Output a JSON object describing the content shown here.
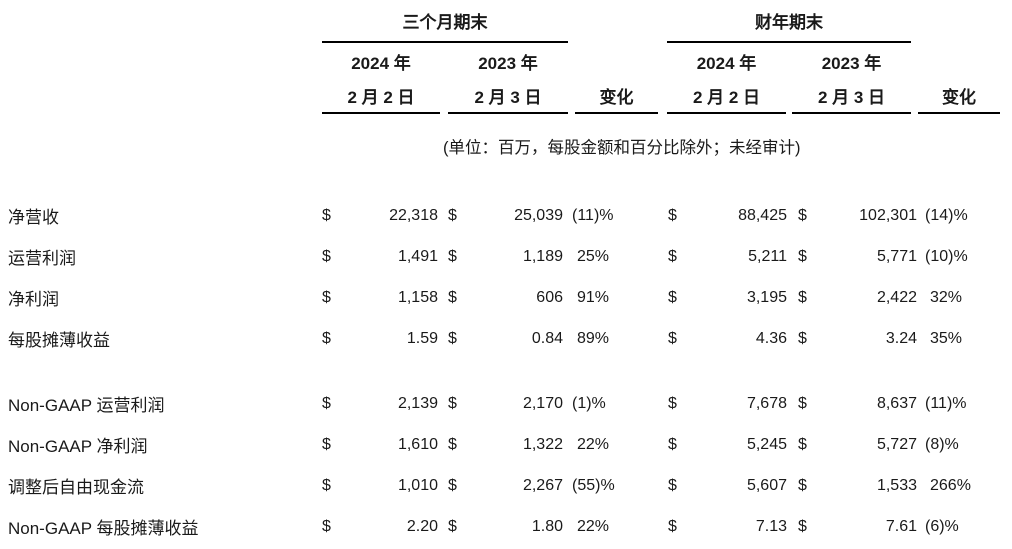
{
  "currency_symbol": "$",
  "header": {
    "quarter_group_title": "三个月期末",
    "fiscal_group_title": "财年期末",
    "q_col_2024_year": "2024 年",
    "q_col_2024_date": "2 月 2 日",
    "q_col_2023_year": "2023 年",
    "q_col_2023_date": "2 月 3 日",
    "fy_col_2024_year": "2024 年",
    "fy_col_2024_date": "2 月 2 日",
    "fy_col_2023_year": "2023 年",
    "fy_col_2023_date": "2 月 3 日",
    "q_change_label": "变化",
    "fy_change_label": "变化",
    "units_note": "(单位：百万，每股金额和百分比除外；未经审计)"
  },
  "rows": [
    {
      "label": "净营收",
      "q_2024": "22,318",
      "q_2023": "25,039",
      "q_change": "(11)%",
      "fy_2024": "88,425",
      "fy_2023": "102,301",
      "fy_change": "(14)%"
    },
    {
      "label": "运营利润",
      "q_2024": "1,491",
      "q_2023": "1,189",
      "q_change": "25%",
      "fy_2024": "5,211",
      "fy_2023": "5,771",
      "fy_change": "(10)%"
    },
    {
      "label": "净利润",
      "q_2024": "1,158",
      "q_2023": "606",
      "q_change": "91%",
      "fy_2024": "3,195",
      "fy_2023": "2,422",
      "fy_change": "32%"
    },
    {
      "label": "每股摊薄收益",
      "q_2024": "1.59",
      "q_2023": "0.84",
      "q_change": "89%",
      "fy_2024": "4.36",
      "fy_2023": "3.24",
      "fy_change": "35%"
    },
    {
      "label": "Non-GAAP 运营利润",
      "q_2024": "2,139",
      "q_2023": "2,170",
      "q_change": "(1)%",
      "fy_2024": "7,678",
      "fy_2023": "8,637",
      "fy_change": "(11)%"
    },
    {
      "label": "Non-GAAP 净利润",
      "q_2024": "1,610",
      "q_2023": "1,322",
      "q_change": "22%",
      "fy_2024": "5,245",
      "fy_2023": "5,727",
      "fy_change": "(8)%"
    },
    {
      "label": "调整后自由现金流",
      "q_2024": "1,010",
      "q_2023": "2,267",
      "q_change": "(55)%",
      "fy_2024": "5,607",
      "fy_2023": "1,533",
      "fy_change": "266%"
    },
    {
      "label": "Non-GAAP 每股摊薄收益",
      "q_2024": "2.20",
      "q_2023": "1.80",
      "q_change": "22%",
      "fy_2024": "7.13",
      "fy_2023": "7.61",
      "fy_change": "(6)%"
    }
  ],
  "colors": {
    "background": "#ffffff",
    "text": "#1a1a1a",
    "rule": "#000000"
  }
}
